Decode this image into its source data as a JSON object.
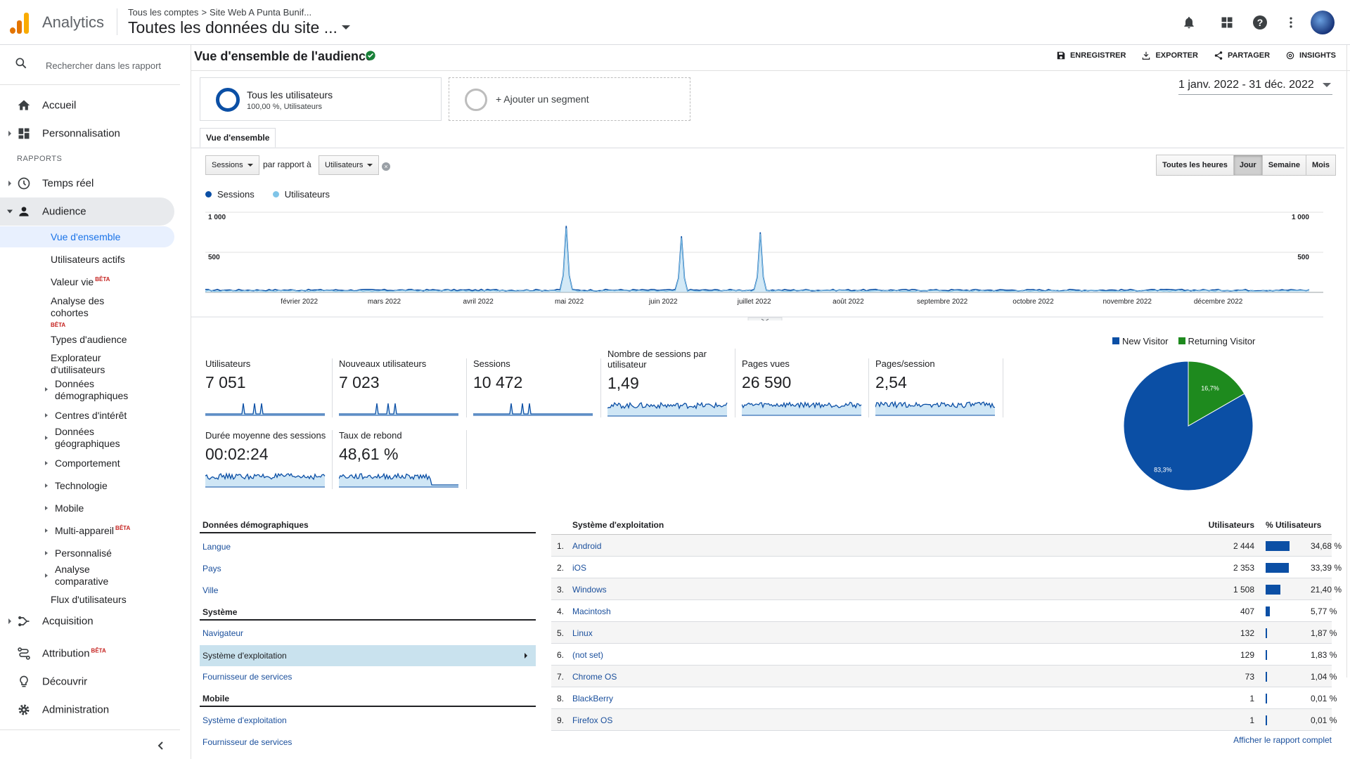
{
  "header": {
    "app_name": "Analytics",
    "breadcrumb": [
      "Tous les comptes",
      "Site Web A Punta Bunif..."
    ],
    "breadcrumb_sep": ">",
    "property_title": "Toutes les données du site ..."
  },
  "sidebar": {
    "search_placeholder": "Rechercher dans les rapport",
    "top_items": [
      {
        "label": "Accueil",
        "icon": "home-icon"
      },
      {
        "label": "Personnalisation",
        "icon": "dashboard-icon"
      }
    ],
    "section_label": "RAPPORTS",
    "report_items": [
      {
        "label": "Temps réel",
        "icon": "clock-icon"
      },
      {
        "label": "Audience",
        "icon": "person-icon"
      }
    ],
    "audience_sub": [
      {
        "label": "Vue d'ensemble"
      },
      {
        "label": "Utilisateurs actifs"
      },
      {
        "label": "Valeur vie",
        "beta": "BÊTA"
      },
      {
        "label": "Analyse des cohortes",
        "beta": "BÊTA"
      },
      {
        "label": "Types d'audience"
      },
      {
        "label": "Explorateur d'utilisateurs"
      },
      {
        "label": "Données démographiques"
      },
      {
        "label": "Centres d'intérêt"
      },
      {
        "label": "Données géographiques"
      },
      {
        "label": "Comportement"
      },
      {
        "label": "Technologie"
      },
      {
        "label": "Mobile"
      },
      {
        "label": "Multi-appareil",
        "beta": "BÊTA"
      },
      {
        "label": "Personnalisé"
      },
      {
        "label": "Analyse comparative"
      },
      {
        "label": "Flux d'utilisateurs"
      }
    ],
    "bottom_items": [
      {
        "label": "Acquisition",
        "icon": "acquisition-icon"
      },
      {
        "label": "Attribution",
        "icon": "attribution-icon",
        "beta": "BÊTA"
      },
      {
        "label": "Découvrir",
        "icon": "lightbulb-icon"
      },
      {
        "label": "Administration",
        "icon": "gear-icon"
      }
    ]
  },
  "main": {
    "title": "Vue d'ensemble de l'audience",
    "actions": [
      "ENREGISTRER",
      "EXPORTER",
      "PARTAGER",
      "INSIGHTS"
    ],
    "segment": {
      "name": "Tous les utilisateurs",
      "detail": "100,00 %, Utilisateurs"
    },
    "add_segment": "+ Ajouter un segment",
    "date_range": "1 janv. 2022 - 31 déc. 2022",
    "tab": "Vue d'ensemble",
    "metric_select": "Sessions",
    "vs_label": "par rapport à",
    "compare_select": "Utilisateurs",
    "granularity": [
      "Toutes les heures",
      "Jour",
      "Semaine",
      "Mois"
    ],
    "granularity_selected": "Jour",
    "legend": [
      {
        "name": "Sessions",
        "color": "#0b4fa5"
      },
      {
        "name": "Utilisateurs",
        "color": "#7fc4e8"
      }
    ]
  },
  "chart_data": {
    "type": "line",
    "y_ticks": [
      "1 000",
      "500"
    ],
    "ylim": [
      0,
      1000
    ],
    "x_labels": [
      "février 2022",
      "mars 2022",
      "avril 2022",
      "mai 2022",
      "juin 2022",
      "juillet 2022",
      "août 2022",
      "septembre 2022",
      "octobre 2022",
      "novembre 2022",
      "décembre 2022"
    ],
    "series": [
      {
        "name": "Sessions",
        "baseline": 28,
        "peaks": [
          {
            "day": 119,
            "value": 830
          },
          {
            "day": 157,
            "value": 700
          },
          {
            "day": 183,
            "value": 750
          }
        ]
      },
      {
        "name": "Utilisateurs",
        "baseline": 20,
        "peaks": [
          {
            "day": 119,
            "value": 800
          },
          {
            "day": 157,
            "value": 680
          },
          {
            "day": 183,
            "value": 730
          }
        ]
      }
    ]
  },
  "kpis": [
    {
      "name": "Utilisateurs",
      "value": "7 051"
    },
    {
      "name": "Nouveaux utilisateurs",
      "value": "7 023"
    },
    {
      "name": "Sessions",
      "value": "10 472"
    },
    {
      "name": "Nombre de sessions par utilisateur",
      "value": "1,49"
    },
    {
      "name": "Pages vues",
      "value": "26 590"
    },
    {
      "name": "Pages/session",
      "value": "2,54"
    },
    {
      "name": "Durée moyenne des sessions",
      "value": "00:02:24"
    },
    {
      "name": "Taux de rebond",
      "value": "48,61 %"
    }
  ],
  "pie": {
    "legend": [
      {
        "name": "New Visitor",
        "color": "#0b4fa5"
      },
      {
        "name": "Returning Visitor",
        "color": "#1e8a1e"
      }
    ],
    "slices": [
      {
        "name": "New Visitor",
        "value": 83.3,
        "label": "83,3%"
      },
      {
        "name": "Returning Visitor",
        "value": 16.7,
        "label": "16,7%"
      }
    ]
  },
  "left_table": {
    "sections": [
      {
        "title": "Données démographiques",
        "links": [
          "Langue",
          "Pays",
          "Ville"
        ]
      },
      {
        "title": "Système",
        "links": [
          "Navigateur",
          "Système d'exploitation",
          "Fournisseur de services"
        ]
      },
      {
        "title": "Mobile",
        "links": [
          "Système d'exploitation",
          "Fournisseur de services"
        ]
      }
    ],
    "selected": "Système d'exploitation"
  },
  "right_table": {
    "headers": [
      "Système d'exploitation",
      "Utilisateurs",
      "% Utilisateurs"
    ],
    "rows": [
      {
        "rank": "1.",
        "name": "Android",
        "users": "2 444",
        "pct": "34,68 %",
        "share": 34.68
      },
      {
        "rank": "2.",
        "name": "iOS",
        "users": "2 353",
        "pct": "33,39 %",
        "share": 33.39
      },
      {
        "rank": "3.",
        "name": "Windows",
        "users": "1 508",
        "pct": "21,40 %",
        "share": 21.4
      },
      {
        "rank": "4.",
        "name": "Macintosh",
        "users": "407",
        "pct": "5,77 %",
        "share": 5.77
      },
      {
        "rank": "5.",
        "name": "Linux",
        "users": "132",
        "pct": "1,87 %",
        "share": 1.87
      },
      {
        "rank": "6.",
        "name": "(not set)",
        "users": "129",
        "pct": "1,83 %",
        "share": 1.83
      },
      {
        "rank": "7.",
        "name": "Chrome OS",
        "users": "73",
        "pct": "1,04 %",
        "share": 1.04
      },
      {
        "rank": "8.",
        "name": "BlackBerry",
        "users": "1",
        "pct": "0,01 %",
        "share": 0.01
      },
      {
        "rank": "9.",
        "name": "Firefox OS",
        "users": "1",
        "pct": "0,01 %",
        "share": 0.01
      }
    ],
    "full_report": "Afficher le rapport complet"
  }
}
